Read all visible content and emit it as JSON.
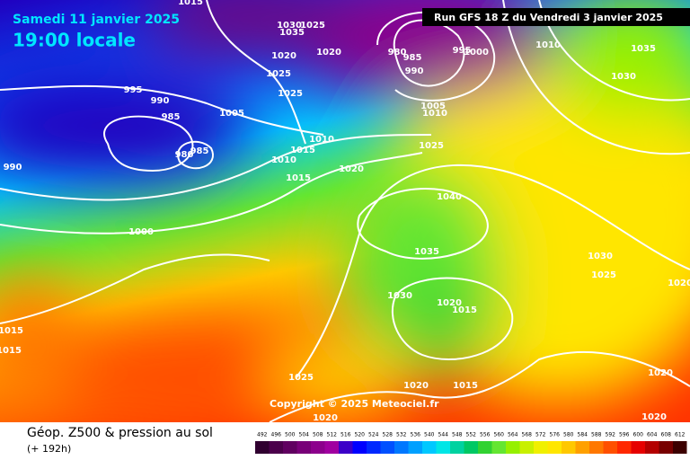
{
  "header": {
    "date": "Samedi 11 janvier 2025",
    "time": "19:00 locale",
    "run": "Run GFS 18 Z du Vendredi 3 janvier 2025"
  },
  "copyright": "Copyright © 2025 Meteociel.fr",
  "footer": {
    "title": "Géop. Z500 & pression au sol",
    "lead": "(+ 192h)"
  },
  "legend": {
    "values": [
      492,
      496,
      500,
      504,
      508,
      512,
      516,
      520,
      524,
      528,
      532,
      536,
      540,
      544,
      548,
      552,
      556,
      560,
      564,
      568,
      572,
      576,
      580,
      584,
      588,
      592,
      596,
      600,
      604,
      608,
      612
    ],
    "colors": [
      "#300030",
      "#4b004b",
      "#600060",
      "#780078",
      "#8c008c",
      "#a000a0",
      "#3c00c8",
      "#0000ff",
      "#0028ff",
      "#0050ff",
      "#0078ff",
      "#00a0ff",
      "#00c8ff",
      "#00e6e6",
      "#00d2a0",
      "#00c864",
      "#32d232",
      "#64e632",
      "#96f000",
      "#c8f000",
      "#f0f000",
      "#ffe600",
      "#ffc800",
      "#ffa000",
      "#ff7800",
      "#ff5000",
      "#ff2800",
      "#e60000",
      "#b40000",
      "#780000",
      "#3c0000"
    ]
  },
  "isobar_labels": [
    "1015",
    "1030",
    "1035",
    "1025",
    "1020",
    "1020",
    "1025",
    "1025",
    "995",
    "990",
    "985",
    "1005",
    "1010",
    "1015",
    "1010",
    "1020",
    "1015",
    "990",
    "980",
    "985",
    "1000",
    "1025",
    "1040",
    "1035",
    "1030",
    "1020",
    "1015",
    "1025",
    "1020",
    "1015",
    "1020",
    "1020",
    "1020",
    "1030",
    "1025",
    "1020",
    "1015",
    "1015",
    "1035",
    "1030",
    "1010",
    "980",
    "985",
    "990",
    "995",
    "1000",
    "1005",
    "1010"
  ]
}
